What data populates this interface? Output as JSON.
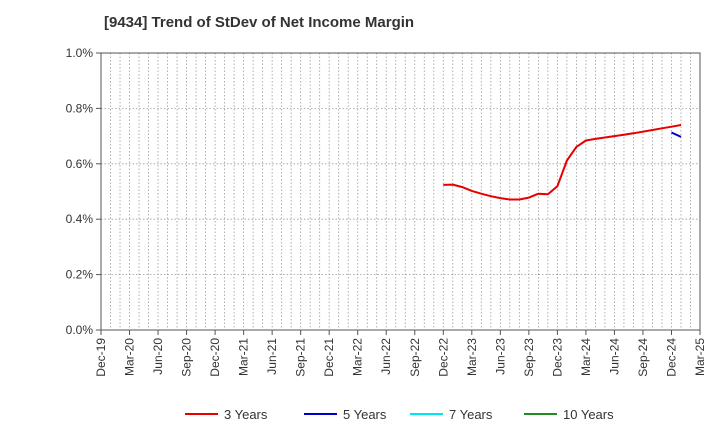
{
  "chart_data": {
    "type": "line",
    "title": "[9434]  Trend of StDev of Net Income Margin",
    "y_ticks": [
      "0.0%",
      "0.2%",
      "0.4%",
      "0.6%",
      "0.8%",
      "1.0%"
    ],
    "ylim": [
      0,
      1.0
    ],
    "x_ticks": [
      "Dec-19",
      "Mar-20",
      "Jun-20",
      "Sep-20",
      "Dec-20",
      "Mar-21",
      "Jun-21",
      "Sep-21",
      "Dec-21",
      "Mar-22",
      "Jun-22",
      "Sep-22",
      "Dec-22",
      "Mar-23",
      "Jun-23",
      "Sep-23",
      "Dec-23",
      "Mar-24",
      "Jun-24",
      "Sep-24",
      "Dec-24",
      "Mar-25"
    ],
    "grid": true,
    "legend_position": "bottom",
    "series": [
      {
        "name": "3 Years",
        "color": "#e60000",
        "points": [
          [
            "Dec-22",
            0.524
          ],
          [
            "Jan-23",
            0.525
          ],
          [
            "Feb-23",
            0.516
          ],
          [
            "Mar-23",
            0.502
          ],
          [
            "Apr-23",
            0.492
          ],
          [
            "May-23",
            0.483
          ],
          [
            "Jun-23",
            0.476
          ],
          [
            "Jul-23",
            0.471
          ],
          [
            "Aug-23",
            0.471
          ],
          [
            "Sep-23",
            0.478
          ],
          [
            "Oct-23",
            0.492
          ],
          [
            "Nov-23",
            0.49
          ],
          [
            "Dec-23",
            0.519
          ],
          [
            "Jan-24",
            0.612
          ],
          [
            "Feb-24",
            0.661
          ],
          [
            "Mar-24",
            0.684
          ],
          [
            "Apr-24",
            0.69
          ],
          [
            "May-24",
            0.695
          ],
          [
            "Jun-24",
            0.7
          ],
          [
            "Jul-24",
            0.705
          ],
          [
            "Aug-24",
            0.71
          ],
          [
            "Sep-24",
            0.716
          ],
          [
            "Oct-24",
            0.722
          ],
          [
            "Nov-24",
            0.728
          ],
          [
            "Dec-24",
            0.734
          ],
          [
            "Jan-25",
            0.74
          ]
        ]
      },
      {
        "name": "5 Years",
        "color": "#0000cc",
        "points": [
          [
            "Dec-24",
            0.713
          ],
          [
            "Jan-25",
            0.697
          ]
        ]
      },
      {
        "name": "7 Years",
        "color": "#00e5ee",
        "points": []
      },
      {
        "name": "10 Years",
        "color": "#228b22",
        "points": []
      }
    ]
  }
}
